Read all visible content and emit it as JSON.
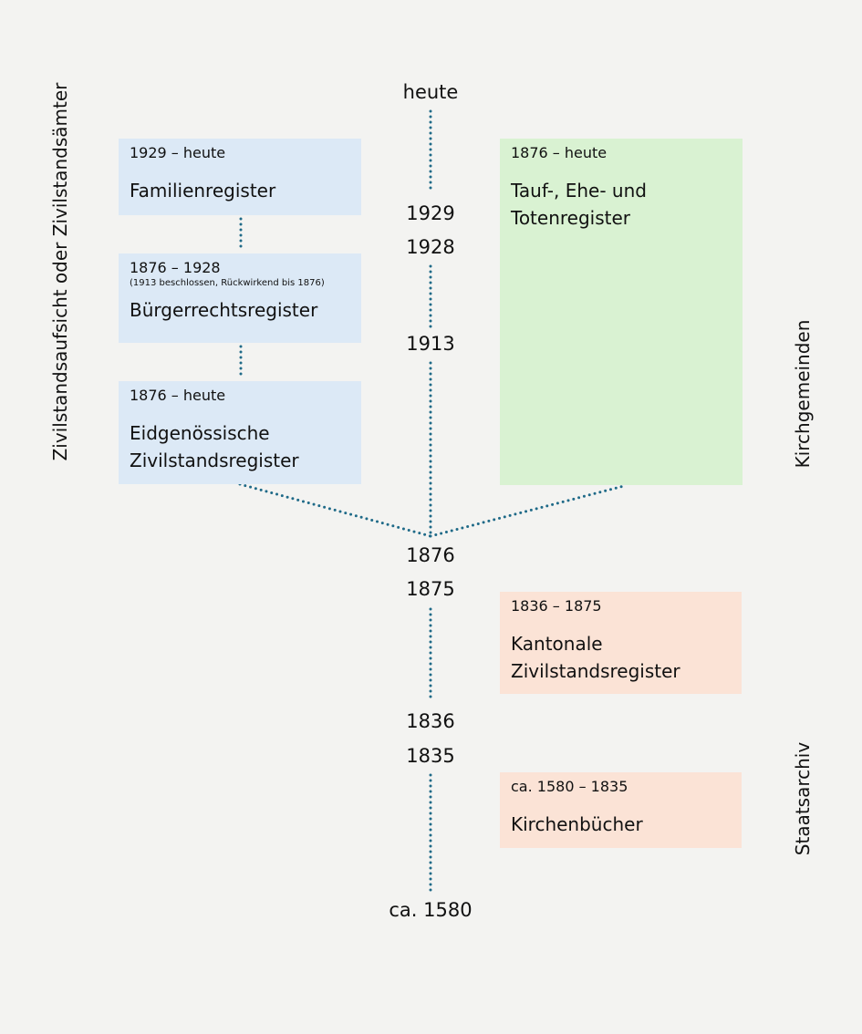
{
  "colors": {
    "background": "#f3f3f1",
    "civil_box": "#dce9f6",
    "church_box": "#d9f2d2",
    "archive_box": "#fbe3d6",
    "connector": "#1f6a88"
  },
  "timeline": {
    "labels": [
      "heute",
      "1929",
      "1928",
      "1913",
      "1876",
      "1875",
      "1836",
      "1835",
      "ca. 1580"
    ]
  },
  "side_labels": {
    "left": "Zivilstandsaufsicht oder Zivilstandsämter",
    "right_top": "Kirchgemeinden",
    "right_bottom": "Staatsarchiv"
  },
  "boxes": {
    "familienregister": {
      "range": "1929 – heute",
      "title": "Familienregister"
    },
    "buergerrechtsregister": {
      "range": "1876 – 1928",
      "note": "(1913 beschlossen, Rückwirkend bis 1876)",
      "title": "Bürgerrechtsregister"
    },
    "eidgenoessische": {
      "range": "1876 – heute",
      "title_line1": "Eidgenössische",
      "title_line2": "Zivilstandsregister"
    },
    "tauf": {
      "range": "1876 – heute",
      "title_line1": "Tauf-, Ehe- und",
      "title_line2": "Totenregister"
    },
    "kantonale": {
      "range": "1836 – 1875",
      "title_line1": "Kantonale",
      "title_line2": "Zivilstandsregister"
    },
    "kirchenbuecher": {
      "range": "ca. 1580 – 1835",
      "title": "Kirchenbücher"
    }
  }
}
